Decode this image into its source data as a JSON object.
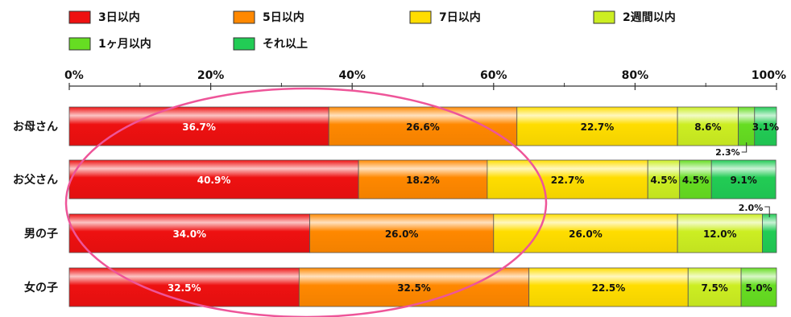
{
  "chart_data": {
    "type": "bar",
    "orientation": "horizontal",
    "stacked": true,
    "title": "",
    "xlabel": "",
    "ylabel": "",
    "xlim": [
      0,
      100
    ],
    "x_ticks": [
      "0%",
      "20%",
      "40%",
      "60%",
      "80%",
      "100%"
    ],
    "legend_position": "top",
    "categories": [
      "お母さん",
      "お父さん",
      "男の子",
      "女の子"
    ],
    "series": [
      {
        "name": "3日以内",
        "color": "#ee1111",
        "values": [
          36.7,
          40.9,
          34.0,
          32.5
        ],
        "labels": [
          "36.7%",
          "40.9%",
          "34.0%",
          "32.5%"
        ]
      },
      {
        "name": "5日以内",
        "color": "#ff8800",
        "values": [
          26.6,
          18.2,
          26.0,
          32.5
        ],
        "labels": [
          "26.6%",
          "18.2%",
          "26.0%",
          "32.5%"
        ]
      },
      {
        "name": "7日以内",
        "color": "#ffdd00",
        "values": [
          22.7,
          22.7,
          26.0,
          22.5
        ],
        "labels": [
          "22.7%",
          "22.7%",
          "26.0%",
          "22.5%"
        ]
      },
      {
        "name": "2週間以内",
        "color": "#ccee22",
        "values": [
          8.6,
          4.5,
          12.0,
          7.5
        ],
        "labels": [
          "8.6%",
          "4.5%",
          "12.0%",
          "7.5%"
        ]
      },
      {
        "name": "1ヶ月以内",
        "color": "#66dd22",
        "values": [
          2.3,
          4.5,
          0.0,
          5.0
        ],
        "labels": [
          "2.3%",
          "4.5%",
          "",
          "5.0%"
        ]
      },
      {
        "name": "それ以上",
        "color": "#22cc55",
        "values": [
          3.1,
          9.1,
          2.0,
          0.0
        ],
        "labels": [
          "3.1%",
          "9.1%",
          "2.0%",
          ""
        ]
      }
    ]
  }
}
